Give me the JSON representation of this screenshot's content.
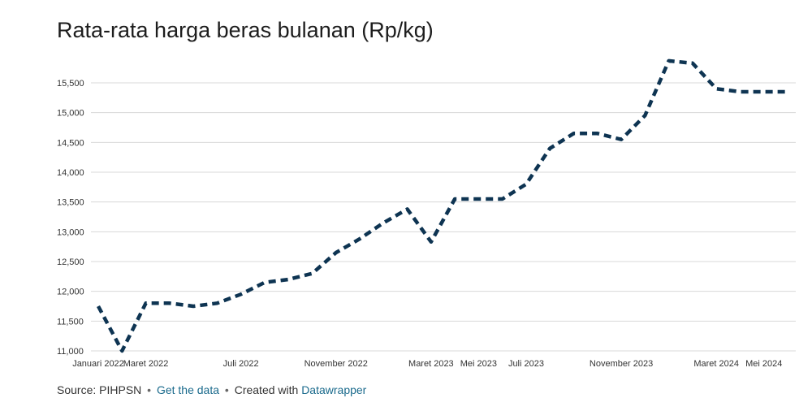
{
  "title": "Rata-rata harga beras bulanan (Rp/kg)",
  "footer": {
    "source": "Source: PIHPSN",
    "separator": "•",
    "get_data": "Get the data",
    "created_with": "Created with",
    "tool": "Datawrapper"
  },
  "colors": {
    "line": "#0e3452",
    "grid": "#d8d8d8",
    "link": "#1a6a8c"
  },
  "chart_data": {
    "type": "line",
    "title": "Rata-rata harga beras bulanan (Rp/kg)",
    "xlabel": "",
    "ylabel": "",
    "ylim": [
      11000,
      15800
    ],
    "grid": true,
    "y_ticks": [
      11000,
      11500,
      12000,
      12500,
      13000,
      13500,
      14000,
      14500,
      15000,
      15500
    ],
    "y_tick_labels": [
      "11,000",
      "11,500",
      "12,000",
      "12,500",
      "13,000",
      "13,500",
      "14,000",
      "14,500",
      "15,000",
      "15,500"
    ],
    "x_ticks": [
      "Januari 2022",
      "Maret 2022",
      "Juli 2022",
      "November 2022",
      "Maret 2023",
      "Mei 2023",
      "Juli 2023",
      "November 2023",
      "Maret 2024",
      "Mei 2024"
    ],
    "x_tick_months": [
      "2022-01",
      "2022-03",
      "2022-07",
      "2022-11",
      "2023-03",
      "2023-05",
      "2023-07",
      "2023-11",
      "2024-03",
      "2024-05"
    ],
    "series": [
      {
        "x": [
          "2022-01",
          "2022-02",
          "2022-03",
          "2022-04",
          "2022-05",
          "2022-06",
          "2022-07",
          "2022-08",
          "2022-09",
          "2022-10",
          "2022-11",
          "2022-12",
          "2023-01",
          "2023-02",
          "2023-03",
          "2023-04",
          "2023-05",
          "2023-06",
          "2023-07",
          "2023-08",
          "2023-09",
          "2023-10",
          "2023-11",
          "2023-12",
          "2024-01",
          "2024-02",
          "2024-03",
          "2024-04",
          "2024-05",
          "2024-06"
        ],
        "values": [
          11750,
          11000,
          11800,
          11800,
          11750,
          11800,
          11950,
          12150,
          12200,
          12300,
          12650,
          12880,
          13150,
          13380,
          12830,
          13550,
          13550,
          13550,
          13800,
          14400,
          14650,
          14650,
          14550,
          14950,
          15870,
          15830,
          15400,
          15350,
          15350,
          15350
        ]
      }
    ]
  }
}
